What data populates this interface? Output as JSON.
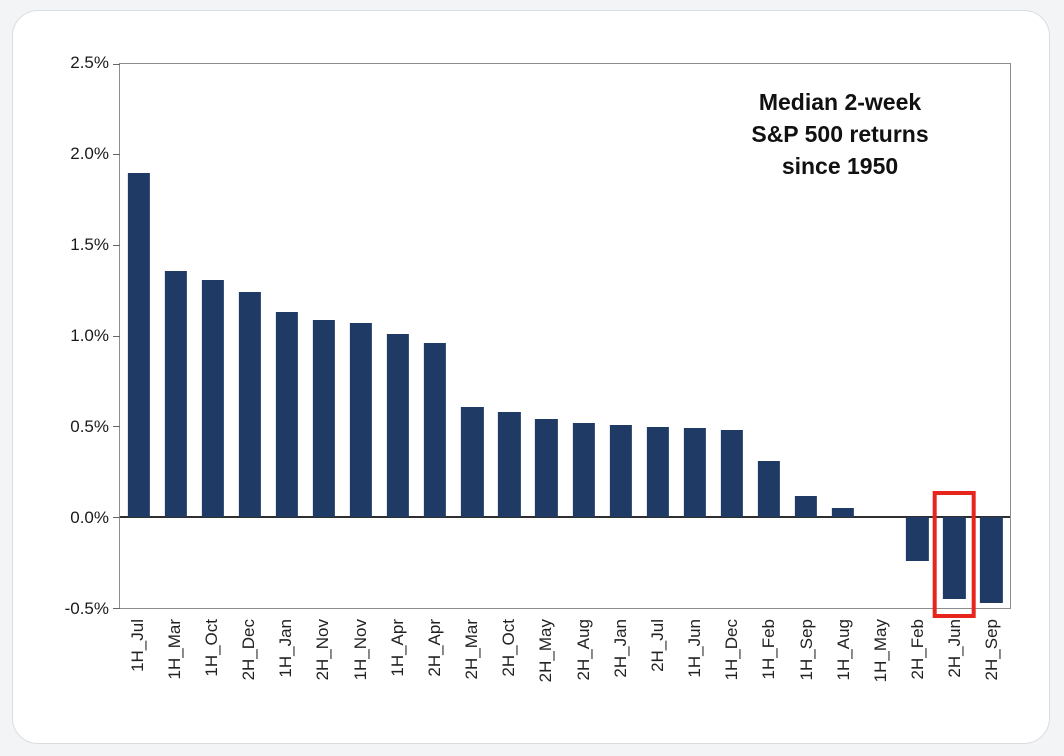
{
  "page": {
    "background": "#f3f4f6"
  },
  "card": {
    "background": "#ffffff",
    "border_color": "#dadde0"
  },
  "chart_data": {
    "type": "bar",
    "title": "Median 2-week S&P 500 returns since 1950",
    "title_lines": [
      "Median 2-week",
      "S&P 500 returns",
      "since 1950"
    ],
    "categories": [
      "1H_Jul",
      "1H_Mar",
      "1H_Oct",
      "2H_Dec",
      "1H_Jan",
      "2H_Nov",
      "1H_Nov",
      "1H_Apr",
      "2H_Apr",
      "2H_Mar",
      "2H_Oct",
      "2H_May",
      "2H_Aug",
      "2H_Jan",
      "2H_Jul",
      "1H_Jun",
      "1H_Dec",
      "1H_Feb",
      "1H_Sep",
      "1H_Aug",
      "1H_May",
      "2H_Feb",
      "2H_Jun",
      "2H_Sep"
    ],
    "values": [
      1.9,
      1.36,
      1.31,
      1.24,
      1.13,
      1.09,
      1.07,
      1.01,
      0.96,
      0.61,
      0.58,
      0.54,
      0.52,
      0.51,
      0.5,
      0.49,
      0.48,
      0.31,
      0.12,
      0.05,
      0.0,
      -0.24,
      -0.45,
      -0.47
    ],
    "value_unit": "%",
    "ylim": [
      -0.5,
      2.5
    ],
    "ytick_step": 0.5,
    "yticks": [
      "2.5%",
      "2.0%",
      "1.5%",
      "1.0%",
      "0.5%",
      "0.0%",
      "-0.5%"
    ],
    "grid": false,
    "legend": "none",
    "bar_color": "#1f3a64",
    "axis_color": "#8c8c8c",
    "highlight": {
      "category": "2H_Jun",
      "index": 22,
      "color": "#e8251d"
    }
  }
}
